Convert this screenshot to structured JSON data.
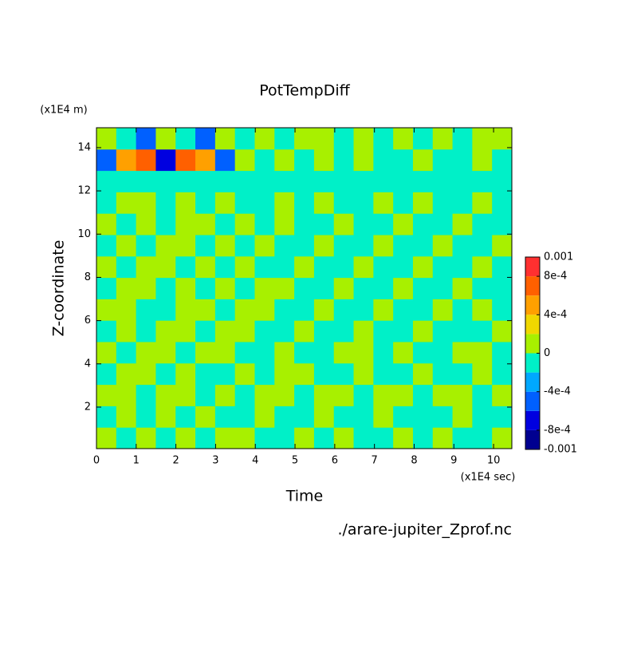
{
  "chart_data": {
    "type": "contour",
    "title": "PotTempDiff",
    "y_unit": "(x1E4 m)",
    "ylabel": "Z-coordinate",
    "xlabel": "Time",
    "x_unit": "(x1E4 sec)",
    "source": "./arare-jupiter_Zprof.nc",
    "xlim": [
      0,
      10.46
    ],
    "ylim": [
      0.08,
      14.92
    ],
    "xticks": [
      0,
      1,
      2,
      3,
      4,
      5,
      6,
      7,
      8,
      9,
      10
    ],
    "yticks": [
      2,
      4,
      6,
      8,
      10,
      12,
      14
    ],
    "levels": [
      -0.001,
      -0.0008,
      -0.0006,
      -0.0004,
      -0.0002,
      0,
      0.0002,
      0.0004,
      0.0006,
      0.0008,
      0.001
    ],
    "colors": [
      "#000090",
      "#0000e0",
      "#0060ff",
      "#00a8ff",
      "#00f0c8",
      "#a8f000",
      "#f0d800",
      "#ffa000",
      "#ff6000",
      "#ff3030"
    ],
    "colorbar_ticks": [
      {
        "value": -0.001,
        "label": "-0.001"
      },
      {
        "value": -0.0008,
        "label": "-8e-4"
      },
      {
        "value": -0.0004,
        "label": "-4e-4"
      },
      0,
      {
        "value": 0.0004,
        "label": "4e-4"
      },
      {
        "value": 0.0008,
        "label": "8e-4"
      },
      0.001
    ],
    "z": [
      [
        0.0001,
        -0.0001,
        0.0001,
        -0.0001,
        0.0001,
        -0.0001,
        0.0001,
        0.0001,
        -0.0001,
        -0.0001,
        0.0001,
        -0.0001,
        0.0001,
        -0.0001,
        -0.0001,
        0.0001,
        -0.0001,
        0.0001,
        -0.0001,
        -0.0001,
        0.0001
      ],
      [
        -0.0001,
        0.0001,
        -0.0001,
        0.0001,
        -0.0001,
        0.0001,
        -0.0001,
        -0.0001,
        0.0001,
        -0.0001,
        -0.0001,
        0.0001,
        -0.0001,
        -0.0001,
        0.0001,
        -0.0001,
        -0.0001,
        -0.0001,
        0.0001,
        -0.0001,
        -0.0001
      ],
      [
        0.0001,
        0.0001,
        -0.0001,
        0.0001,
        0.0001,
        -0.0001,
        0.0001,
        -0.0001,
        0.0001,
        0.0001,
        -0.0001,
        0.0001,
        0.0001,
        -0.0001,
        0.0001,
        0.0001,
        -0.0001,
        0.0001,
        0.0001,
        -0.0001,
        0.0001
      ],
      [
        -0.0001,
        0.0001,
        0.0001,
        -0.0001,
        0.0001,
        -0.0001,
        -0.0001,
        0.0001,
        -0.0001,
        0.0001,
        0.0001,
        -0.0001,
        -0.0001,
        0.0001,
        -0.0001,
        -0.0001,
        0.0001,
        -0.0001,
        -0.0001,
        0.0001,
        -0.0001
      ],
      [
        0.0001,
        -0.0001,
        0.0001,
        0.0001,
        -0.0001,
        0.0001,
        0.0001,
        -0.0001,
        -0.0001,
        0.0001,
        -0.0001,
        -0.0001,
        0.0001,
        0.0001,
        -0.0001,
        0.0001,
        -0.0001,
        -0.0001,
        0.0001,
        0.0001,
        -0.0001
      ],
      [
        -0.0001,
        0.0001,
        -0.0001,
        0.0001,
        0.0001,
        -0.0001,
        0.0001,
        0.0001,
        -0.0001,
        -0.0001,
        0.0001,
        -0.0001,
        -0.0001,
        0.0001,
        -0.0001,
        -0.0001,
        0.0001,
        -0.0001,
        -0.0001,
        -0.0001,
        0.0001
      ],
      [
        0.0001,
        0.0001,
        -0.0001,
        -0.0001,
        0.0001,
        0.0001,
        -0.0001,
        0.0001,
        0.0001,
        -0.0001,
        -0.0001,
        0.0001,
        -0.0001,
        -0.0001,
        0.0001,
        -0.0001,
        -0.0001,
        0.0001,
        -0.0001,
        0.0001,
        -0.0001
      ],
      [
        -0.0001,
        0.0001,
        0.0001,
        -0.0001,
        0.0001,
        -0.0001,
        0.0001,
        -0.0001,
        0.0001,
        0.0001,
        -0.0001,
        -0.0001,
        0.0001,
        -0.0001,
        -0.0001,
        0.0001,
        -0.0001,
        -0.0001,
        0.0001,
        -0.0001,
        -0.0001
      ],
      [
        0.0001,
        -0.0001,
        0.0001,
        0.0001,
        -0.0001,
        0.0001,
        -0.0001,
        0.0001,
        -0.0001,
        -0.0001,
        0.0001,
        -0.0001,
        -0.0001,
        0.0001,
        -0.0001,
        -0.0001,
        0.0001,
        -0.0001,
        -0.0001,
        0.0001,
        -0.0001
      ],
      [
        -0.0001,
        0.0001,
        -0.0001,
        0.0001,
        0.0001,
        -0.0001,
        0.0001,
        -0.0001,
        0.0001,
        -0.0001,
        -0.0001,
        0.0001,
        -0.0001,
        -0.0001,
        0.0001,
        -0.0001,
        -0.0001,
        0.0001,
        -0.0001,
        -0.0001,
        0.0001
      ],
      [
        0.0001,
        -0.0001,
        0.0001,
        -0.0001,
        0.0001,
        0.0001,
        -0.0001,
        0.0001,
        -0.0001,
        0.0001,
        -0.0001,
        -0.0001,
        0.0001,
        -0.0001,
        -0.0001,
        0.0001,
        -0.0001,
        -0.0001,
        0.0001,
        -0.0001,
        -0.0001
      ],
      [
        -0.0001,
        0.0001,
        0.0001,
        -0.0001,
        0.0001,
        -0.0001,
        0.0001,
        -0.0001,
        -0.0001,
        0.0001,
        -0.0001,
        0.0001,
        -0.0001,
        -0.0001,
        0.0001,
        -0.0001,
        0.0001,
        -0.0001,
        -0.0001,
        0.0001,
        -0.0001
      ],
      [
        -0.0001,
        -0.0001,
        -0.0001,
        -0.0001,
        -0.0001,
        -0.0001,
        -0.0001,
        -0.0001,
        -0.0001,
        -0.0001,
        -0.0001,
        -0.0001,
        -0.0001,
        -0.0001,
        -0.0001,
        -0.0001,
        -0.0001,
        -0.0001,
        -0.0001,
        -0.0001,
        -0.0001
      ],
      [
        -0.0005,
        0.0005,
        0.0007,
        -0.0007,
        0.0007,
        0.0005,
        -0.0005,
        0.0001,
        -0.0001,
        0.0001,
        -0.0001,
        0.0001,
        -0.0001,
        0.0001,
        -0.0001,
        -0.0001,
        0.0001,
        -0.0001,
        -0.0001,
        0.0001,
        -0.0001
      ],
      [
        0.0001,
        -0.0001,
        -0.0005,
        0.0001,
        -0.0001,
        -0.0005,
        0.0001,
        -0.0001,
        0.0001,
        -0.0001,
        0.0001,
        0.0001,
        -0.0001,
        0.0001,
        -0.0001,
        0.0001,
        -0.0001,
        0.0001,
        -0.0001,
        0.0001,
        0.0001
      ]
    ]
  }
}
